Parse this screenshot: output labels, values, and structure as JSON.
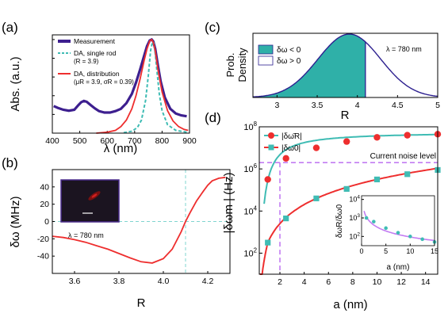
{
  "colors": {
    "measurement": "#3d1f8f",
    "single_rod": "#3fbcb4",
    "distribution": "#ee2e2e",
    "density_fill": "#2fb0a8",
    "density_line": "#2c1f8f",
    "dashed_teal": "#7fd5cf",
    "dashed_purple": "#c27cf2",
    "inset_curve": "#c27cf2",
    "inset_pts": "#3fbcb4"
  },
  "panels": {
    "a": {
      "letter": "(a)"
    },
    "b": {
      "letter": "(b)"
    },
    "c": {
      "letter": "(c)"
    },
    "d": {
      "letter": "(d)"
    }
  },
  "chart_data": [
    {
      "panel": "a",
      "type": "line",
      "xlabel": "λ (nm)",
      "ylabel": "Abs. (a.u.)",
      "xlim": [
        400,
        900
      ],
      "ylim": [
        0,
        1.05
      ],
      "xticks": [
        400,
        500,
        600,
        700,
        800,
        900
      ],
      "yticks": [
        0,
        0.2,
        0.4,
        0.6,
        0.8,
        1
      ],
      "legend_position": "top-left",
      "legend": [
        {
          "label": "Measurement",
          "sub": ""
        },
        {
          "label": "DA, single rod",
          "sub": "(R = 3.9)"
        },
        {
          "label": "DA, distribution",
          "sub": "(μR = 3.9, σR = 0.39)"
        }
      ],
      "series": [
        {
          "name": "Measurement",
          "style": "thick",
          "x": [
            405,
            420,
            440,
            460,
            480,
            495,
            505,
            515,
            525,
            540,
            555,
            570,
            590,
            610,
            630,
            650,
            670,
            690,
            705,
            720,
            735,
            745,
            755,
            762,
            768,
            775,
            785,
            795,
            810,
            830,
            850,
            870,
            890
          ],
          "y": [
            0.29,
            0.27,
            0.25,
            0.24,
            0.25,
            0.3,
            0.33,
            0.345,
            0.335,
            0.3,
            0.265,
            0.235,
            0.22,
            0.22,
            0.235,
            0.26,
            0.32,
            0.42,
            0.54,
            0.68,
            0.83,
            0.93,
            0.99,
            1.0,
            0.98,
            0.9,
            0.72,
            0.55,
            0.38,
            0.26,
            0.21,
            0.19,
            0.18
          ]
        },
        {
          "name": "DA, single rod",
          "style": "dashed",
          "x": [
            660,
            690,
            710,
            725,
            740,
            750,
            758,
            765,
            770,
            775,
            780,
            790,
            800,
            820,
            850,
            890
          ],
          "y": [
            0.005,
            0.02,
            0.06,
            0.14,
            0.35,
            0.62,
            0.88,
            0.98,
            0.96,
            0.85,
            0.7,
            0.42,
            0.24,
            0.09,
            0.03,
            0.01
          ]
        },
        {
          "name": "DA, distribution",
          "style": "solid",
          "x": [
            560,
            600,
            630,
            650,
            670,
            690,
            705,
            720,
            735,
            745,
            755,
            762,
            768,
            775,
            785,
            800,
            820,
            840,
            860,
            880,
            895
          ],
          "y": [
            0.0,
            0.01,
            0.03,
            0.07,
            0.14,
            0.26,
            0.4,
            0.58,
            0.78,
            0.9,
            0.985,
            1.0,
            0.97,
            0.88,
            0.68,
            0.44,
            0.24,
            0.13,
            0.07,
            0.04,
            0.03
          ]
        }
      ]
    },
    {
      "panel": "b",
      "type": "line",
      "xlabel": "R",
      "ylabel": "δω (MHz)",
      "xlim": [
        3.5,
        4.3
      ],
      "ylim": [
        -60,
        60
      ],
      "xticks": [
        3.6,
        3.8,
        4.0,
        4.2
      ],
      "yticks": [
        -40,
        -20,
        0,
        20,
        40
      ],
      "vline": 4.1,
      "annotation": "λ = 780 nm",
      "series": [
        {
          "name": "",
          "x": [
            3.5,
            3.55,
            3.6,
            3.65,
            3.7,
            3.75,
            3.8,
            3.85,
            3.9,
            3.95,
            4.0,
            4.04,
            4.08,
            4.1,
            4.12,
            4.15,
            4.18,
            4.2,
            4.22,
            4.25,
            4.28
          ],
          "y": [
            -17,
            -18.5,
            -21,
            -24,
            -28,
            -32,
            -37,
            -42,
            -46.5,
            -48,
            -43,
            -32,
            -12,
            0,
            10,
            24,
            35,
            42,
            47,
            50,
            51
          ]
        }
      ]
    },
    {
      "panel": "c",
      "type": "area",
      "xlabel": "R",
      "ylabel": "Prob. Density",
      "xlim": [
        2.7,
        5.0
      ],
      "xticks": [
        3,
        3.5,
        4,
        4.5,
        5
      ],
      "mean": 3.9,
      "sigma": 0.39,
      "threshold": 4.1,
      "annotation": "λ = 780 nm",
      "legend_position": "top-left",
      "legend": [
        "δω < 0",
        "δω > 0"
      ]
    },
    {
      "panel": "d",
      "type": "scatter",
      "xlabel": "a (nm)",
      "ylabel": "|δωm | (Hz)",
      "xlim": [
        0.3,
        15
      ],
      "ylim_log10": [
        1,
        8
      ],
      "xticks": [
        2,
        4,
        6,
        8,
        10,
        12,
        14
      ],
      "yticks": [
        "10^2",
        "10^4",
        "10^6",
        "10^8"
      ],
      "legend_position": "top-left",
      "legend": [
        "|δω̄R|",
        "|δω0|"
      ],
      "noise_level_label": "Current noise level",
      "noise_level_log10": 6.3,
      "crossing_a": 2,
      "series": [
        {
          "name": "|δω̄R|",
          "marker": "circle",
          "x": [
            1,
            2.5,
            5,
            7.5,
            10,
            12.5,
            15
          ],
          "y_log10": [
            5.5,
            6.5,
            7.0,
            7.3,
            7.5,
            7.6,
            7.65
          ]
        },
        {
          "name": "|δω0|",
          "marker": "square",
          "x": [
            1,
            2.5,
            5,
            7.5,
            10,
            12.5,
            15
          ],
          "y_log10": [
            2.5,
            3.65,
            4.6,
            5.05,
            5.5,
            5.75,
            5.95
          ]
        }
      ],
      "inset": {
        "xlabel": "a (nm)",
        "ylabel": "δωR/δω0",
        "xlim": [
          0,
          15
        ],
        "ylim_log10": [
          1.5,
          4.2
        ],
        "xticks": [
          0,
          5,
          10,
          15
        ],
        "yticks": [
          "10^2",
          "10^3",
          "10^4"
        ],
        "x": [
          1,
          2.5,
          5,
          7.5,
          10,
          12.5,
          15
        ],
        "y_log10": [
          3.0,
          2.8,
          2.45,
          2.2,
          2.0,
          1.85,
          1.7
        ]
      }
    }
  ]
}
